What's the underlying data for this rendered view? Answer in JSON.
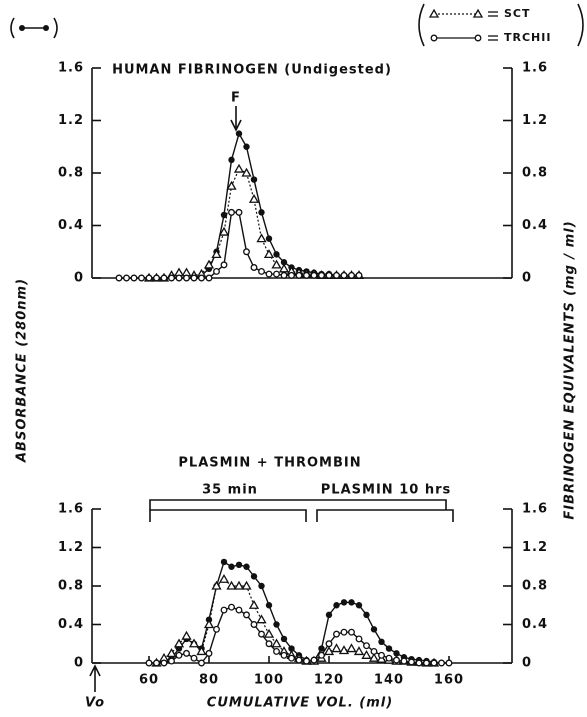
{
  "chart_data": [
    {
      "type": "line",
      "title": "HUMAN FIBRINOGEN (Undigested)",
      "annotation": "F",
      "ylabel": "ABSORBANCE (280nm)",
      "y2label": "FIBRINOGEN EQUIVALENTS (mg / ml)",
      "xlim": [
        41,
        181
      ],
      "ylim": [
        0,
        1.6
      ],
      "yticks": [
        0,
        0.4,
        0.8,
        1.2,
        1.6
      ],
      "y2lim": [
        0,
        1.6
      ],
      "y2ticks": [
        0,
        0.4,
        0.8,
        1.2,
        1.6
      ],
      "x": [
        50,
        52.5,
        55,
        57.5,
        60,
        62.5,
        65,
        67.5,
        70,
        72.5,
        75,
        77.5,
        80,
        82.5,
        85,
        87.5,
        90,
        92.5,
        95,
        97.5,
        100,
        102.5,
        105,
        107.5,
        110,
        112.5,
        115,
        117.5,
        120,
        122.5,
        125,
        127.5,
        130
      ],
      "series": [
        {
          "color": "#111",
          "marker": "filled-circle",
          "linestyle": "solid",
          "values": [
            0,
            0,
            0,
            0,
            0,
            0,
            0,
            0,
            0,
            0,
            0,
            0.02,
            0.07,
            0.2,
            0.48,
            0.9,
            1.1,
            1.0,
            0.75,
            0.5,
            0.3,
            0.18,
            0.12,
            0.08,
            0.06,
            0.05,
            0.04,
            0.03,
            0.03,
            0.02,
            0.02,
            0.02,
            0.02
          ]
        },
        {
          "name": "SCT",
          "color": "#111",
          "marker": "triangle",
          "linestyle": "dotted",
          "values": [
            null,
            null,
            null,
            null,
            0,
            0,
            0,
            0.02,
            0.04,
            0.04,
            0.02,
            0.03,
            0.1,
            0.18,
            0.35,
            0.7,
            0.83,
            0.8,
            0.6,
            0.3,
            0.18,
            0.1,
            0.07,
            0.05,
            0.04,
            0.03,
            0.03,
            0.02,
            0.02,
            0.02,
            0.02,
            0.02,
            0.02
          ]
        },
        {
          "name": "TRCHII",
          "color": "#111",
          "marker": "open-circle",
          "linestyle": "solid",
          "values": [
            0,
            0,
            0,
            0,
            0,
            0,
            0,
            0,
            0,
            0,
            0,
            0,
            0,
            0.05,
            0.1,
            0.5,
            0.5,
            0.2,
            0.08,
            0.05,
            0.03,
            0.03,
            0.02,
            0.02,
            0.02,
            0.02,
            0.02,
            0.02,
            0.02,
            0.02,
            0.02,
            0.02,
            0.02
          ]
        }
      ]
    },
    {
      "type": "line",
      "title": "PLASMIN + THROMBIN",
      "annotations": [
        "35 min",
        "PLASMIN 10 hrs",
        "Vo"
      ],
      "xlabel": "CUMULATIVE VOL. (ml)",
      "xlim": [
        41,
        181
      ],
      "xticks": [
        60,
        80,
        100,
        120,
        140,
        160
      ],
      "ylim": [
        0,
        1.6
      ],
      "yticks": [
        0,
        0.4,
        0.8,
        1.2,
        1.6
      ],
      "y2lim": [
        0,
        1.6
      ],
      "y2ticks": [
        0,
        0.4,
        0.8,
        1.2,
        1.6
      ],
      "x": [
        60,
        62.5,
        65,
        67.5,
        70,
        72.5,
        75,
        77.5,
        80,
        82.5,
        85,
        87.5,
        90,
        92.5,
        95,
        97.5,
        100,
        102.5,
        105,
        107.5,
        110,
        112.5,
        115,
        117.5,
        120,
        122.5,
        125,
        127.5,
        130,
        132.5,
        135,
        137.5,
        140,
        142.5,
        145,
        147.5,
        150,
        152.5,
        155,
        157.5,
        160
      ],
      "series": [
        {
          "color": "#111",
          "marker": "filled-circle",
          "linestyle": "solid",
          "values": [
            0,
            0,
            0.02,
            0.05,
            0.15,
            0.25,
            0.2,
            0.15,
            0.45,
            0.8,
            1.05,
            1.0,
            1.02,
            1.0,
            0.9,
            0.8,
            0.6,
            0.4,
            0.25,
            0.15,
            0.08,
            0.03,
            0.02,
            0.15,
            0.5,
            0.6,
            0.63,
            0.63,
            0.6,
            0.5,
            0.35,
            0.22,
            0.15,
            0.1,
            0.06,
            0.04,
            0.03,
            0.02,
            0.01,
            0,
            0
          ]
        },
        {
          "color": "#111",
          "marker": "triangle",
          "linestyle": "dotted",
          "values": [
            null,
            0,
            0.05,
            0.1,
            0.2,
            0.28,
            0.2,
            0.12,
            0.4,
            0.8,
            0.87,
            0.8,
            0.8,
            0.8,
            0.6,
            0.45,
            0.3,
            0.2,
            0.12,
            0.08,
            0.05,
            0.02,
            0.02,
            0.05,
            0.12,
            0.15,
            0.13,
            0.15,
            0.12,
            0.08,
            0.05,
            0.04,
            0.03,
            0.02,
            0.02,
            0.01,
            0.01,
            0,
            0,
            null,
            null
          ]
        },
        {
          "color": "#111",
          "marker": "open-circle",
          "linestyle": "solid",
          "values": [
            0,
            0,
            0,
            0.02,
            0.08,
            0.1,
            0.05,
            0,
            0.1,
            0.35,
            0.55,
            0.58,
            0.55,
            0.5,
            0.4,
            0.3,
            0.2,
            0.12,
            0.08,
            0.05,
            0.03,
            0.02,
            0.03,
            0.08,
            0.2,
            0.3,
            0.32,
            0.32,
            0.25,
            0.18,
            0.12,
            0.08,
            0.05,
            0.03,
            0.02,
            0.01,
            0,
            0,
            0,
            0,
            0
          ]
        }
      ]
    }
  ]
}
